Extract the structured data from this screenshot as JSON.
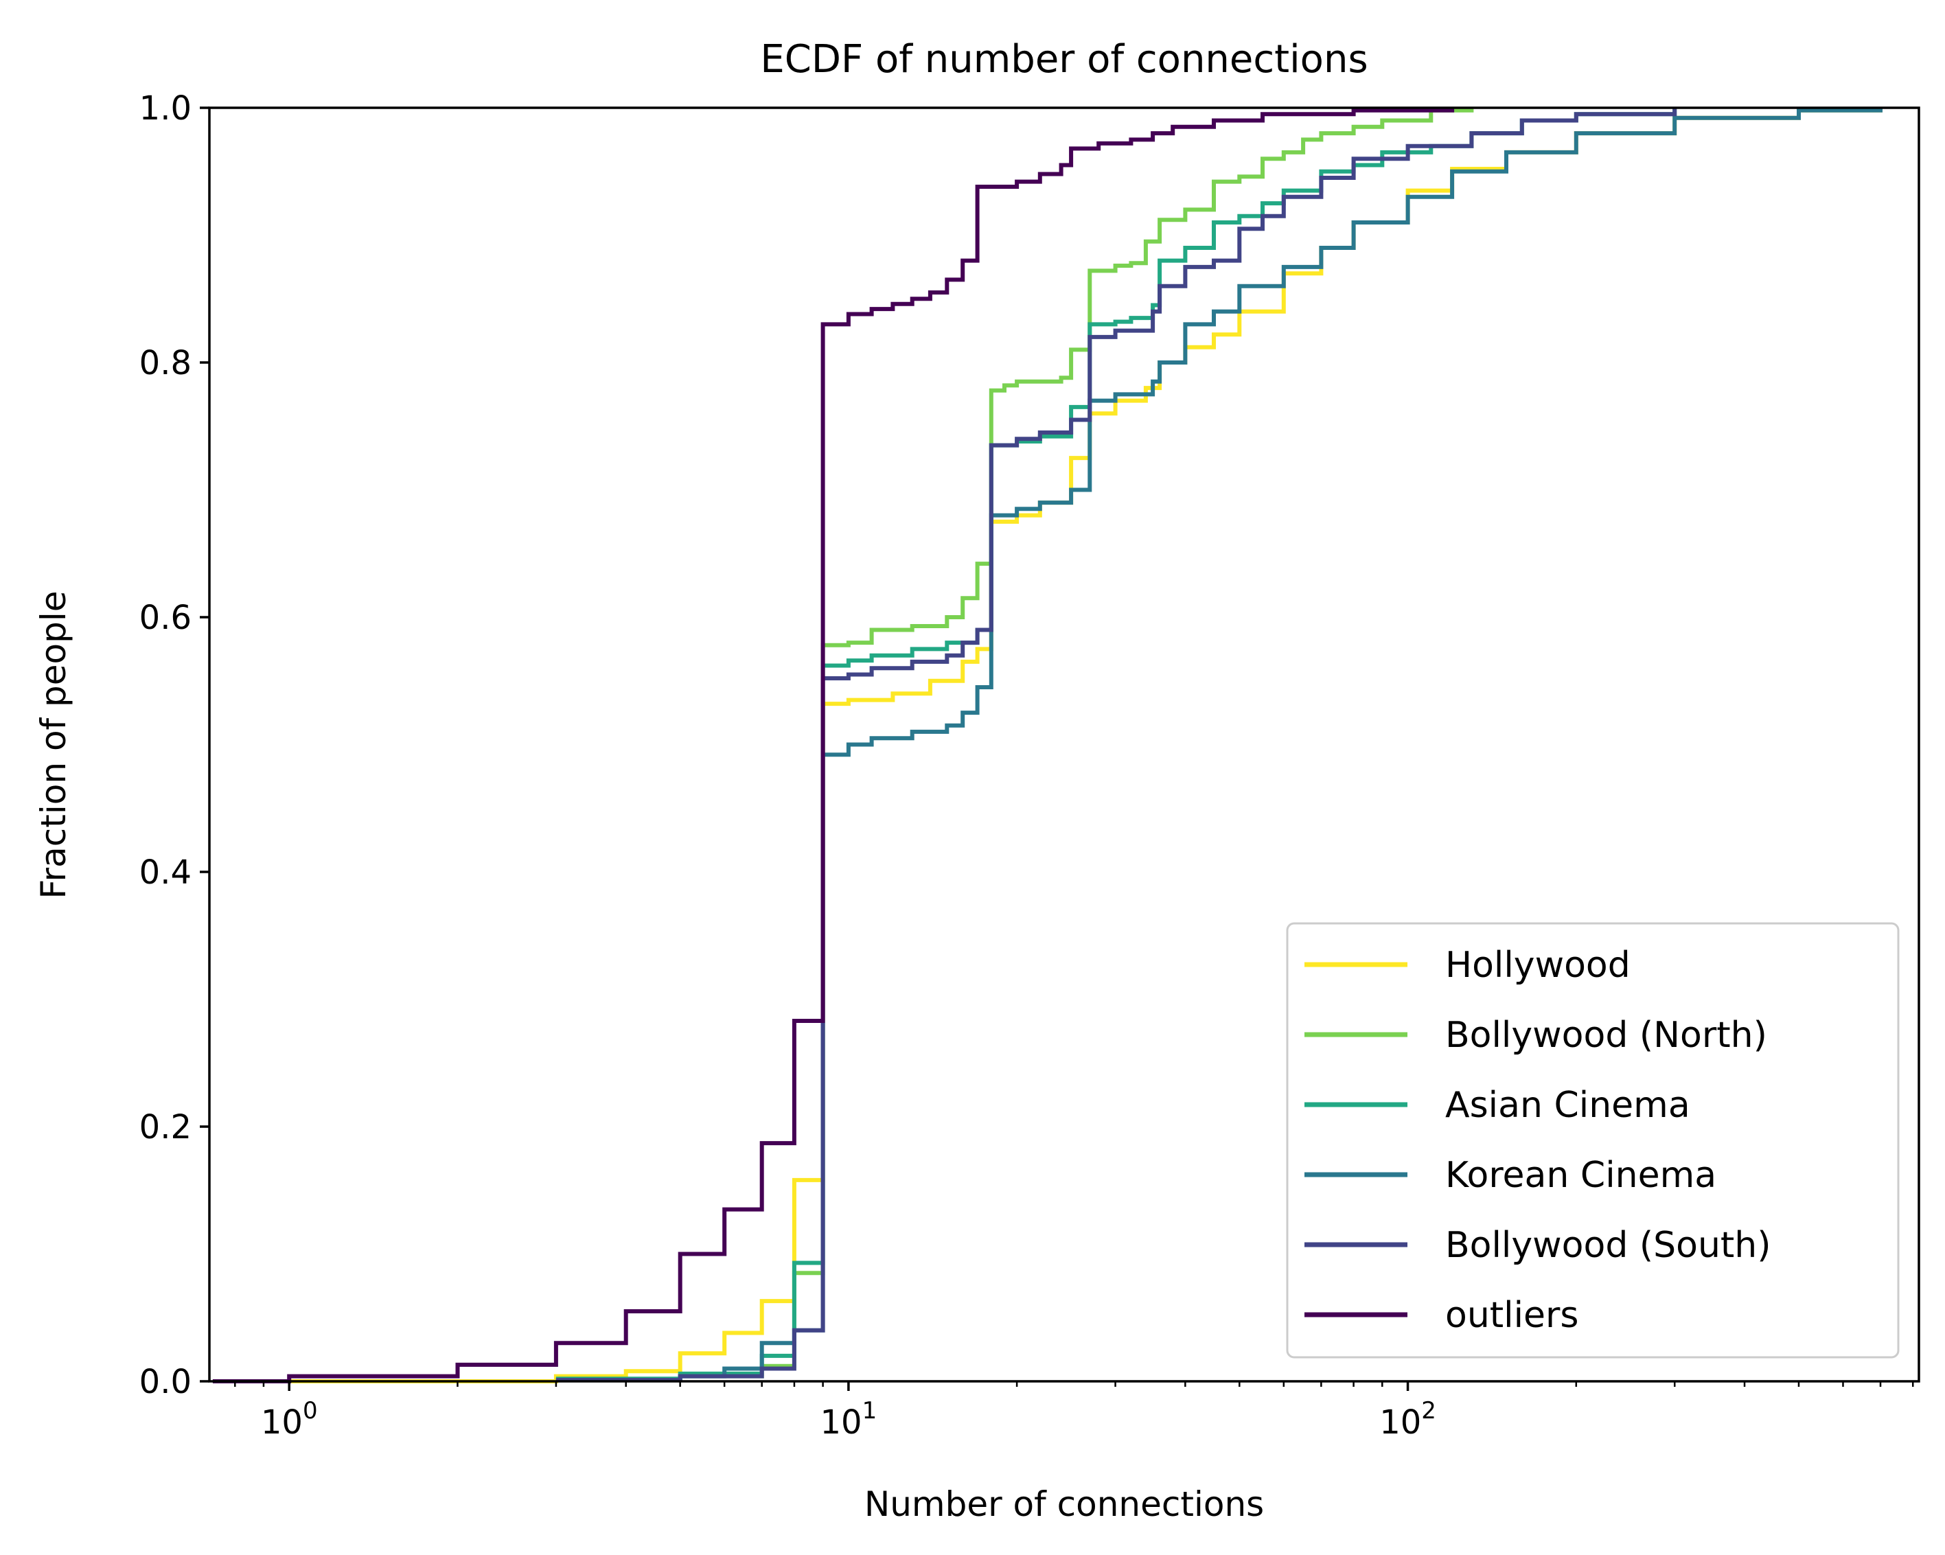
{
  "chart_data": {
    "type": "line",
    "title": "ECDF of number of connections",
    "xlabel": "Number of connections",
    "ylabel": "Fraction of people",
    "x_scale": "log",
    "xlim": [
      0.72,
      820
    ],
    "ylim": [
      0,
      1
    ],
    "x_ticks": [
      {
        "value": 1,
        "base": "10",
        "exp": "0"
      },
      {
        "value": 10,
        "base": "10",
        "exp": "1"
      },
      {
        "value": 100,
        "base": "10",
        "exp": "2"
      }
    ],
    "y_ticks": [
      "0.0",
      "0.2",
      "0.4",
      "0.6",
      "0.8",
      "1.0"
    ],
    "grid": false,
    "legend_position": "lower-right",
    "series": [
      {
        "name": "Hollywood",
        "color": "#fde725",
        "points": [
          [
            1,
            0.0
          ],
          [
            3,
            0.004
          ],
          [
            4,
            0.008
          ],
          [
            5,
            0.022
          ],
          [
            6,
            0.038
          ],
          [
            7,
            0.063
          ],
          [
            8,
            0.158
          ],
          [
            9,
            0.532
          ],
          [
            10,
            0.535
          ],
          [
            12,
            0.54
          ],
          [
            14,
            0.55
          ],
          [
            16,
            0.565
          ],
          [
            17,
            0.575
          ],
          [
            18,
            0.675
          ],
          [
            20,
            0.68
          ],
          [
            22,
            0.69
          ],
          [
            25,
            0.725
          ],
          [
            27,
            0.76
          ],
          [
            30,
            0.77
          ],
          [
            34,
            0.78
          ],
          [
            36,
            0.8
          ],
          [
            40,
            0.812
          ],
          [
            45,
            0.822
          ],
          [
            50,
            0.84
          ],
          [
            60,
            0.87
          ],
          [
            70,
            0.89
          ],
          [
            80,
            0.91
          ],
          [
            100,
            0.935
          ],
          [
            120,
            0.952
          ],
          [
            150,
            0.965
          ],
          [
            200,
            0.98
          ],
          [
            300,
            0.992
          ],
          [
            500,
            0.998
          ],
          [
            700,
            1.0
          ]
        ]
      },
      {
        "name": "Bollywood (North)",
        "color": "#7ad151",
        "points": [
          [
            3,
            0.001
          ],
          [
            5,
            0.004
          ],
          [
            7,
            0.012
          ],
          [
            8,
            0.085
          ],
          [
            9,
            0.578
          ],
          [
            10,
            0.58
          ],
          [
            11,
            0.59
          ],
          [
            13,
            0.593
          ],
          [
            15,
            0.6
          ],
          [
            16,
            0.615
          ],
          [
            17,
            0.642
          ],
          [
            18,
            0.778
          ],
          [
            19,
            0.782
          ],
          [
            20,
            0.785
          ],
          [
            24,
            0.788
          ],
          [
            25,
            0.81
          ],
          [
            27,
            0.872
          ],
          [
            30,
            0.876
          ],
          [
            32,
            0.878
          ],
          [
            34,
            0.895
          ],
          [
            36,
            0.912
          ],
          [
            40,
            0.92
          ],
          [
            45,
            0.942
          ],
          [
            50,
            0.946
          ],
          [
            55,
            0.96
          ],
          [
            60,
            0.965
          ],
          [
            65,
            0.975
          ],
          [
            70,
            0.98
          ],
          [
            80,
            0.985
          ],
          [
            90,
            0.99
          ],
          [
            110,
            0.998
          ],
          [
            130,
            1.0
          ]
        ]
      },
      {
        "name": "Asian Cinema",
        "color": "#22a884",
        "points": [
          [
            3,
            0.002
          ],
          [
            5,
            0.006
          ],
          [
            7,
            0.02
          ],
          [
            8,
            0.093
          ],
          [
            9,
            0.562
          ],
          [
            10,
            0.566
          ],
          [
            11,
            0.57
          ],
          [
            13,
            0.575
          ],
          [
            15,
            0.58
          ],
          [
            17,
            0.59
          ],
          [
            18,
            0.735
          ],
          [
            20,
            0.738
          ],
          [
            22,
            0.742
          ],
          [
            25,
            0.765
          ],
          [
            27,
            0.83
          ],
          [
            30,
            0.832
          ],
          [
            32,
            0.835
          ],
          [
            35,
            0.845
          ],
          [
            36,
            0.88
          ],
          [
            40,
            0.89
          ],
          [
            45,
            0.91
          ],
          [
            50,
            0.915
          ],
          [
            55,
            0.925
          ],
          [
            60,
            0.935
          ],
          [
            70,
            0.95
          ],
          [
            80,
            0.955
          ],
          [
            90,
            0.965
          ],
          [
            110,
            0.97
          ],
          [
            130,
            0.98
          ],
          [
            160,
            0.99
          ],
          [
            200,
            0.995
          ],
          [
            300,
            1.0
          ]
        ]
      },
      {
        "name": "Korean Cinema",
        "color": "#2a788e",
        "points": [
          [
            3,
            0.001
          ],
          [
            5,
            0.004
          ],
          [
            6,
            0.01
          ],
          [
            7,
            0.03
          ],
          [
            8,
            0.04
          ],
          [
            9,
            0.492
          ],
          [
            10,
            0.5
          ],
          [
            11,
            0.505
          ],
          [
            13,
            0.51
          ],
          [
            15,
            0.515
          ],
          [
            16,
            0.525
          ],
          [
            17,
            0.545
          ],
          [
            18,
            0.68
          ],
          [
            20,
            0.685
          ],
          [
            22,
            0.69
          ],
          [
            25,
            0.7
          ],
          [
            27,
            0.77
          ],
          [
            30,
            0.775
          ],
          [
            35,
            0.785
          ],
          [
            36,
            0.8
          ],
          [
            40,
            0.83
          ],
          [
            45,
            0.84
          ],
          [
            50,
            0.86
          ],
          [
            60,
            0.875
          ],
          [
            70,
            0.89
          ],
          [
            80,
            0.91
          ],
          [
            100,
            0.93
          ],
          [
            120,
            0.95
          ],
          [
            150,
            0.965
          ],
          [
            200,
            0.98
          ],
          [
            300,
            0.992
          ],
          [
            500,
            0.998
          ],
          [
            700,
            1.0
          ]
        ]
      },
      {
        "name": "Bollywood (South)",
        "color": "#414487",
        "points": [
          [
            3,
            0.001
          ],
          [
            5,
            0.004
          ],
          [
            7,
            0.01
          ],
          [
            8,
            0.04
          ],
          [
            9,
            0.552
          ],
          [
            10,
            0.555
          ],
          [
            11,
            0.56
          ],
          [
            13,
            0.565
          ],
          [
            15,
            0.57
          ],
          [
            16,
            0.58
          ],
          [
            17,
            0.59
          ],
          [
            18,
            0.735
          ],
          [
            20,
            0.74
          ],
          [
            22,
            0.745
          ],
          [
            25,
            0.755
          ],
          [
            27,
            0.82
          ],
          [
            30,
            0.825
          ],
          [
            35,
            0.84
          ],
          [
            36,
            0.86
          ],
          [
            40,
            0.875
          ],
          [
            45,
            0.88
          ],
          [
            50,
            0.905
          ],
          [
            55,
            0.915
          ],
          [
            60,
            0.93
          ],
          [
            70,
            0.945
          ],
          [
            80,
            0.96
          ],
          [
            100,
            0.97
          ],
          [
            130,
            0.98
          ],
          [
            160,
            0.99
          ],
          [
            200,
            0.995
          ],
          [
            300,
            1.0
          ]
        ]
      },
      {
        "name": "outliers",
        "color": "#440154",
        "points": [
          [
            0.73,
            0.0
          ],
          [
            1,
            0.004
          ],
          [
            2,
            0.013
          ],
          [
            3,
            0.03
          ],
          [
            4,
            0.055
          ],
          [
            5,
            0.1
          ],
          [
            6,
            0.135
          ],
          [
            7,
            0.187
          ],
          [
            8,
            0.283
          ],
          [
            9,
            0.83
          ],
          [
            10,
            0.838
          ],
          [
            11,
            0.842
          ],
          [
            12,
            0.846
          ],
          [
            13,
            0.85
          ],
          [
            14,
            0.855
          ],
          [
            15,
            0.865
          ],
          [
            16,
            0.88
          ],
          [
            17,
            0.938
          ],
          [
            20,
            0.942
          ],
          [
            22,
            0.948
          ],
          [
            24,
            0.955
          ],
          [
            25,
            0.968
          ],
          [
            28,
            0.972
          ],
          [
            32,
            0.975
          ],
          [
            35,
            0.98
          ],
          [
            38,
            0.985
          ],
          [
            45,
            0.99
          ],
          [
            55,
            0.995
          ],
          [
            80,
            0.998
          ],
          [
            120,
            1.0
          ]
        ]
      }
    ]
  }
}
